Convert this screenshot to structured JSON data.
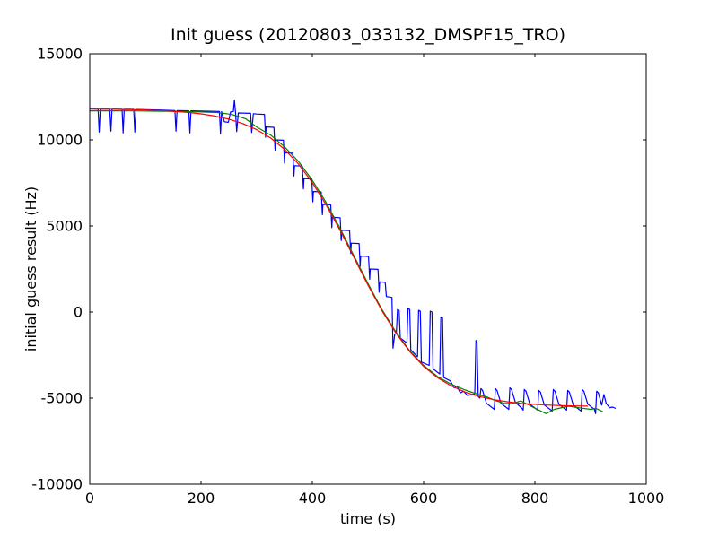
{
  "chart_data": {
    "type": "line",
    "title": "Init guess (20120803_033132_DMSPF15_TRO)",
    "xlabel": "time (s)",
    "ylabel": "initial guess result (Hz)",
    "xlim": [
      0,
      1000
    ],
    "ylim": [
      -10000,
      15000
    ],
    "xticks": [
      0,
      200,
      400,
      600,
      800,
      1000
    ],
    "yticks": [
      -10000,
      -5000,
      0,
      5000,
      10000,
      15000
    ],
    "grid": false,
    "legend": "none",
    "background_color": "#ffffff",
    "tick_style": "inward-all-four-spines",
    "series": [
      {
        "name": "blue-raw-signal",
        "color": "#0000ff",
        "points": [
          [
            0,
            11800
          ],
          [
            15,
            11790
          ],
          [
            17,
            10450
          ],
          [
            19,
            11790
          ],
          [
            36,
            11785
          ],
          [
            38,
            10500
          ],
          [
            40,
            11785
          ],
          [
            58,
            11780
          ],
          [
            60,
            10400
          ],
          [
            62,
            11775
          ],
          [
            79,
            11770
          ],
          [
            81,
            10450
          ],
          [
            83,
            11765
          ],
          [
            100,
            11755
          ],
          [
            125,
            11735
          ],
          [
            153,
            11705
          ],
          [
            155,
            10500
          ],
          [
            157,
            11700
          ],
          [
            178,
            11690
          ],
          [
            180,
            10400
          ],
          [
            182,
            11685
          ],
          [
            210,
            11665
          ],
          [
            233,
            11645
          ],
          [
            235,
            10350
          ],
          [
            237,
            11640
          ],
          [
            242,
            11050
          ],
          [
            249,
            11020
          ],
          [
            253,
            11620
          ],
          [
            258,
            11645
          ],
          [
            260,
            12320
          ],
          [
            262,
            11600
          ],
          [
            264,
            10480
          ],
          [
            267,
            11560
          ],
          [
            289,
            11540
          ],
          [
            291,
            10420
          ],
          [
            294,
            11520
          ],
          [
            300,
            11500
          ],
          [
            314,
            11480
          ],
          [
            316,
            10150
          ],
          [
            317,
            10750
          ],
          [
            331,
            10730
          ],
          [
            333,
            9400
          ],
          [
            334,
            10000
          ],
          [
            348,
            9980
          ],
          [
            350,
            8650
          ],
          [
            351,
            9250
          ],
          [
            365,
            9230
          ],
          [
            367,
            7900
          ],
          [
            368,
            8500
          ],
          [
            382,
            8480
          ],
          [
            384,
            7150
          ],
          [
            385,
            7750
          ],
          [
            399,
            7730
          ],
          [
            401,
            6400
          ],
          [
            402,
            7000
          ],
          [
            416,
            6980
          ],
          [
            418,
            5650
          ],
          [
            419,
            6250
          ],
          [
            433,
            6230
          ],
          [
            435,
            4900
          ],
          [
            436,
            5500
          ],
          [
            450,
            5480
          ],
          [
            452,
            4150
          ],
          [
            453,
            4750
          ],
          [
            467,
            4730
          ],
          [
            469,
            3400
          ],
          [
            470,
            4000
          ],
          [
            484,
            3980
          ],
          [
            486,
            2650
          ],
          [
            487,
            3250
          ],
          [
            501,
            3230
          ],
          [
            503,
            1900
          ],
          [
            504,
            2500
          ],
          [
            518,
            2480
          ],
          [
            520,
            1150
          ],
          [
            521,
            1750
          ],
          [
            531,
            1730
          ],
          [
            533,
            900
          ],
          [
            543,
            850
          ],
          [
            545,
            -2100
          ],
          [
            548,
            -1300
          ],
          [
            551,
            -1250
          ],
          [
            553,
            150
          ],
          [
            556,
            100
          ],
          [
            558,
            -1500
          ],
          [
            570,
            -1800
          ],
          [
            572,
            200
          ],
          [
            575,
            150
          ],
          [
            577,
            -2200
          ],
          [
            589,
            -2600
          ],
          [
            591,
            100
          ],
          [
            594,
            50
          ],
          [
            596,
            -2900
          ],
          [
            610,
            -3100
          ],
          [
            612,
            50
          ],
          [
            615,
            0
          ],
          [
            617,
            -3300
          ],
          [
            629,
            -3600
          ],
          [
            631,
            -300
          ],
          [
            634,
            -350
          ],
          [
            636,
            -3800
          ],
          [
            648,
            -4000
          ],
          [
            655,
            -4400
          ],
          [
            660,
            -4300
          ],
          [
            666,
            -4700
          ],
          [
            672,
            -4600
          ],
          [
            679,
            -4850
          ],
          [
            686,
            -4800
          ],
          [
            692,
            -4750
          ],
          [
            694,
            -1650
          ],
          [
            696,
            -1700
          ],
          [
            698,
            -4900
          ],
          [
            701,
            -5000
          ],
          [
            703,
            -4450
          ],
          [
            706,
            -4550
          ],
          [
            713,
            -5300
          ],
          [
            725,
            -5600
          ],
          [
            727,
            -5650
          ],
          [
            729,
            -4450
          ],
          [
            732,
            -4550
          ],
          [
            739,
            -5300
          ],
          [
            751,
            -5600
          ],
          [
            753,
            -5650
          ],
          [
            755,
            -4400
          ],
          [
            758,
            -4500
          ],
          [
            765,
            -5250
          ],
          [
            777,
            -5600
          ],
          [
            779,
            -5700
          ],
          [
            781,
            -4500
          ],
          [
            784,
            -4600
          ],
          [
            791,
            -5350
          ],
          [
            803,
            -5650
          ],
          [
            805,
            -5700
          ],
          [
            807,
            -4550
          ],
          [
            810,
            -4650
          ],
          [
            817,
            -5400
          ],
          [
            829,
            -5700
          ],
          [
            831,
            -5750
          ],
          [
            833,
            -4500
          ],
          [
            836,
            -4600
          ],
          [
            843,
            -5350
          ],
          [
            855,
            -5650
          ],
          [
            857,
            -5700
          ],
          [
            859,
            -4550
          ],
          [
            862,
            -4650
          ],
          [
            869,
            -5400
          ],
          [
            881,
            -5700
          ],
          [
            883,
            -5750
          ],
          [
            885,
            -4500
          ],
          [
            888,
            -4600
          ],
          [
            895,
            -5350
          ],
          [
            907,
            -5650
          ],
          [
            909,
            -5900
          ],
          [
            911,
            -4600
          ],
          [
            914,
            -4700
          ],
          [
            920,
            -5400
          ],
          [
            924,
            -4790
          ],
          [
            928,
            -5300
          ],
          [
            934,
            -5550
          ],
          [
            940,
            -5520
          ],
          [
            945,
            -5600
          ]
        ]
      },
      {
        "name": "green-smoothed",
        "color": "#008000",
        "points": [
          [
            0,
            11690
          ],
          [
            40,
            11690
          ],
          [
            80,
            11680
          ],
          [
            120,
            11665
          ],
          [
            160,
            11650
          ],
          [
            200,
            11620
          ],
          [
            230,
            11590
          ],
          [
            255,
            11480
          ],
          [
            280,
            11230
          ],
          [
            300,
            10750
          ],
          [
            325,
            10280
          ],
          [
            350,
            9600
          ],
          [
            375,
            8750
          ],
          [
            400,
            7650
          ],
          [
            425,
            6350
          ],
          [
            450,
            4850
          ],
          [
            475,
            3250
          ],
          [
            500,
            1650
          ],
          [
            525,
            150
          ],
          [
            550,
            -1150
          ],
          [
            575,
            -2250
          ],
          [
            600,
            -3100
          ],
          [
            625,
            -3750
          ],
          [
            650,
            -4200
          ],
          [
            675,
            -4530
          ],
          [
            700,
            -4800
          ],
          [
            715,
            -4950
          ],
          [
            730,
            -5150
          ],
          [
            745,
            -5300
          ],
          [
            760,
            -5300
          ],
          [
            775,
            -5160
          ],
          [
            795,
            -5500
          ],
          [
            820,
            -5900
          ],
          [
            835,
            -5650
          ],
          [
            860,
            -5470
          ],
          [
            880,
            -5560
          ],
          [
            900,
            -5650
          ],
          [
            910,
            -5600
          ],
          [
            922,
            -5790
          ]
        ]
      },
      {
        "name": "red-model-fit",
        "color": "#ff0000",
        "points": [
          [
            0,
            11790
          ],
          [
            25,
            11780
          ],
          [
            50,
            11770
          ],
          [
            75,
            11755
          ],
          [
            100,
            11735
          ],
          [
            125,
            11705
          ],
          [
            150,
            11660
          ],
          [
            175,
            11600
          ],
          [
            200,
            11510
          ],
          [
            225,
            11385
          ],
          [
            250,
            11205
          ],
          [
            275,
            10950
          ],
          [
            300,
            10595
          ],
          [
            325,
            10110
          ],
          [
            350,
            9455
          ],
          [
            375,
            8600
          ],
          [
            400,
            7515
          ],
          [
            425,
            6215
          ],
          [
            450,
            4735
          ],
          [
            475,
            3150
          ],
          [
            500,
            1565
          ],
          [
            525,
            85
          ],
          [
            550,
            -1215
          ],
          [
            575,
            -2295
          ],
          [
            600,
            -3155
          ],
          [
            625,
            -3810
          ],
          [
            650,
            -4295
          ],
          [
            675,
            -4650
          ],
          [
            700,
            -4905
          ],
          [
            725,
            -5085
          ],
          [
            750,
            -5210
          ],
          [
            775,
            -5300
          ],
          [
            800,
            -5360
          ],
          [
            825,
            -5405
          ],
          [
            850,
            -5435
          ],
          [
            875,
            -5455
          ],
          [
            895,
            -5465
          ]
        ]
      }
    ]
  }
}
